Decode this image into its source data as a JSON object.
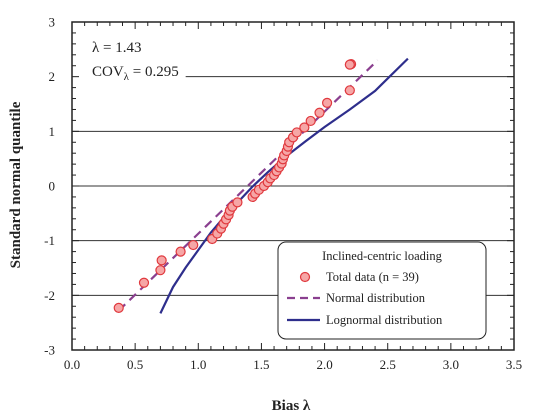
{
  "chart_data": {
    "type": "scatter",
    "xlabel": "Bias λ",
    "ylabel": "Standard normal quantile",
    "xlim": [
      0,
      3.5
    ],
    "ylim": [
      -3,
      3
    ],
    "x_ticks": [
      0,
      0.5,
      1,
      1.5,
      2,
      2.5,
      3,
      3.5
    ],
    "x_tick_labels": [
      "0.0",
      "0.5",
      "1.0",
      "1.5",
      "2.0",
      "2.5",
      "3.0",
      "3.5"
    ],
    "y_ticks": [
      -3,
      -2,
      -1,
      0,
      1,
      2,
      3
    ],
    "y_tick_labels": [
      "-3",
      "-2",
      "-1",
      "0",
      "1",
      "2",
      "3"
    ],
    "gridlines_y": [
      -2,
      -1,
      0,
      1,
      2
    ],
    "annotations": [
      {
        "text": "λ = 1.43"
      },
      {
        "text_main": "COV",
        "text_sub": "λ",
        "text_rest": " = 0.295"
      }
    ],
    "legend": {
      "title": "Inclined-centric loading",
      "placement": "bottom-right",
      "entries": [
        {
          "label": "Total data (n = 39)",
          "kind": "marker"
        },
        {
          "label": "Normal distribution",
          "kind": "dashed-line"
        },
        {
          "label": "Lognormal distribution",
          "kind": "solid-line"
        }
      ]
    },
    "colors": {
      "marker_fill": "#f6a6a6",
      "marker_stroke": "#e0393e",
      "normal_line": "#8a3f8f",
      "lognormal_line": "#2e2e8c",
      "grid": "#333333",
      "axis": "#222222"
    },
    "series": [
      {
        "name": "Total data (n = 39)",
        "kind": "scatter",
        "points": [
          [
            0.37,
            -2.23
          ],
          [
            0.57,
            -1.77
          ],
          [
            0.7,
            -1.54
          ],
          [
            0.71,
            -1.36
          ],
          [
            0.86,
            -1.2
          ],
          [
            0.96,
            -1.08
          ],
          [
            1.11,
            -0.97
          ],
          [
            1.15,
            -0.87
          ],
          [
            1.18,
            -0.78
          ],
          [
            1.2,
            -0.69
          ],
          [
            1.22,
            -0.61
          ],
          [
            1.24,
            -0.53
          ],
          [
            1.25,
            -0.45
          ],
          [
            1.27,
            -0.38
          ],
          [
            1.31,
            -0.3
          ],
          [
            1.43,
            -0.2
          ],
          [
            1.45,
            -0.14
          ],
          [
            1.48,
            -0.07
          ],
          [
            1.52,
            0.0
          ],
          [
            1.55,
            0.07
          ],
          [
            1.57,
            0.14
          ],
          [
            1.6,
            0.2
          ],
          [
            1.62,
            0.27
          ],
          [
            1.64,
            0.34
          ],
          [
            1.66,
            0.41
          ],
          [
            1.67,
            0.49
          ],
          [
            1.68,
            0.56
          ],
          [
            1.7,
            0.64
          ],
          [
            1.71,
            0.72
          ],
          [
            1.72,
            0.8
          ],
          [
            1.75,
            0.89
          ],
          [
            1.78,
            0.98
          ],
          [
            1.84,
            1.07
          ],
          [
            1.89,
            1.19
          ],
          [
            1.96,
            1.34
          ],
          [
            2.02,
            1.52
          ],
          [
            2.2,
            1.75
          ],
          [
            2.21,
            2.23
          ],
          [
            2.2,
            2.22
          ]
        ]
      },
      {
        "name": "Normal distribution",
        "kind": "dashed-line",
        "points": [
          [
            0.37,
            -2.28
          ],
          [
            2.42,
            2.3
          ]
        ]
      },
      {
        "name": "Lognormal distribution",
        "kind": "solid-line",
        "points": [
          [
            0.7,
            -2.33
          ],
          [
            0.8,
            -1.85
          ],
          [
            0.9,
            -1.49
          ],
          [
            1.0,
            -1.17
          ],
          [
            1.1,
            -0.85
          ],
          [
            1.2,
            -0.58
          ],
          [
            1.3,
            -0.33
          ],
          [
            1.43,
            -0.01
          ],
          [
            1.55,
            0.25
          ],
          [
            1.7,
            0.55
          ],
          [
            1.85,
            0.82
          ],
          [
            2.0,
            1.08
          ],
          [
            2.2,
            1.4
          ],
          [
            2.4,
            1.74
          ],
          [
            2.66,
            2.33
          ]
        ]
      }
    ]
  }
}
